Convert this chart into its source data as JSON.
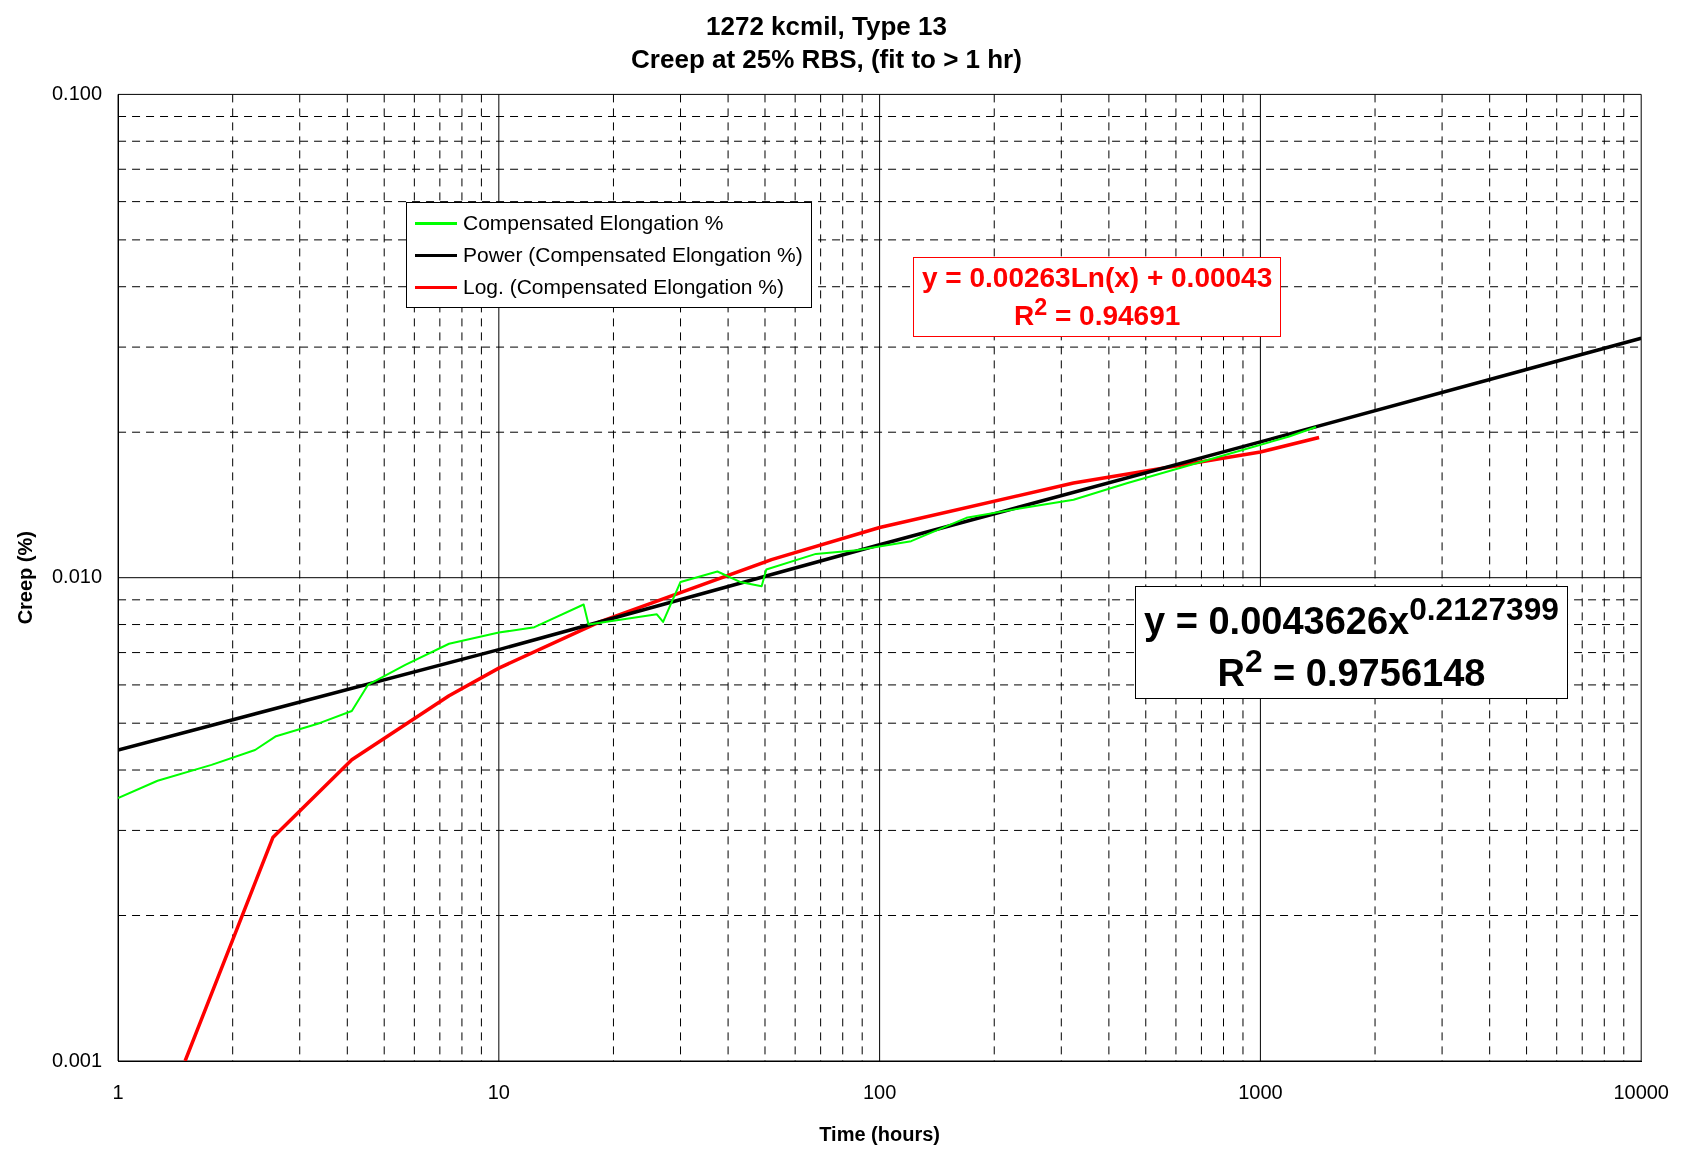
{
  "chart_data": {
    "type": "line",
    "title": "1272 kcmil, Type 13",
    "subtitle": "Creep at 25% RBS, (fit to > 1 hr)",
    "xlabel": "Time (hours)",
    "ylabel": "Creep (%)",
    "log": "xy",
    "grid": true,
    "legend": "top left",
    "marker": "none",
    "line_style": "solid",
    "xlim": [
      1,
      10000
    ],
    "ylim": [
      0.001,
      0.1
    ],
    "xticks": [
      1,
      {
        "value": 2,
        "label": null
      },
      {
        "value": 3,
        "label": null
      },
      {
        "value": 4,
        "label": null
      },
      {
        "value": 5,
        "label": null
      },
      {
        "value": 6,
        "label": null
      },
      {
        "value": 7,
        "label": null
      },
      {
        "value": 8,
        "label": null
      },
      {
        "value": 9,
        "label": null
      },
      10,
      {
        "value": 20,
        "label": null
      },
      {
        "value": 30,
        "label": null
      },
      {
        "value": 40,
        "label": null
      },
      {
        "value": 50,
        "label": null
      },
      {
        "value": 60,
        "label": null
      },
      {
        "value": 70,
        "label": null
      },
      {
        "value": 80,
        "label": null
      },
      {
        "value": 90,
        "label": null
      },
      100,
      {
        "value": 200,
        "label": null
      },
      {
        "value": 300,
        "label": null
      },
      {
        "value": 400,
        "label": null
      },
      {
        "value": 500,
        "label": null
      },
      {
        "value": 600,
        "label": null
      },
      {
        "value": 700,
        "label": null
      },
      {
        "value": 800,
        "label": null
      },
      {
        "value": 900,
        "label": null
      },
      1000,
      {
        "value": 2000,
        "label": null
      },
      {
        "value": 3000,
        "label": null
      },
      {
        "value": 4000,
        "label": null
      },
      {
        "value": 5000,
        "label": null
      },
      {
        "value": 6000,
        "label": null
      },
      {
        "value": 7000,
        "label": null
      },
      {
        "value": 8000,
        "label": null
      },
      {
        "value": 9000,
        "label": null
      },
      10000
    ],
    "yticks": [
      {
        "value": 0.001,
        "label": "0.001"
      },
      {
        "value": 0.002,
        "label": null
      },
      {
        "value": 0.003,
        "label": null
      },
      {
        "value": 0.004,
        "label": null
      },
      {
        "value": 0.005,
        "label": null
      },
      {
        "value": 0.006,
        "label": null
      },
      {
        "value": 0.007,
        "label": null
      },
      {
        "value": 0.008,
        "label": null
      },
      {
        "value": 0.009,
        "label": null
      },
      {
        "value": 0.01,
        "label": "0.010"
      },
      {
        "value": 0.02,
        "label": null
      },
      {
        "value": 0.03,
        "label": null
      },
      {
        "value": 0.04,
        "label": null
      },
      {
        "value": 0.05,
        "label": null
      },
      {
        "value": 0.06,
        "label": null
      },
      {
        "value": 0.07,
        "label": null
      },
      {
        "value": 0.08,
        "label": null
      },
      {
        "value": 0.09,
        "label": null
      },
      {
        "value": 0.1,
        "label": "0.100"
      }
    ],
    "series": [
      {
        "name": "Compensated Elongation %",
        "color": "#00ff00",
        "x": [
          1,
          1.27,
          1.76,
          2.29,
          2.6,
          3.38,
          4.11,
          4.53,
          5.68,
          7.4,
          10,
          12.4,
          16.7,
          17.2,
          26,
          27,
          30,
          37.5,
          43,
          49,
          50.4,
          68,
          87,
          121,
          169,
          233,
          323,
          448,
          621,
          860,
          1190,
          1400
        ],
        "values": [
          0.0035,
          0.0038,
          0.0041,
          0.0044,
          0.0047,
          0.005,
          0.0053,
          0.006,
          0.0066,
          0.0073,
          0.0077,
          0.0079,
          0.0088,
          0.008,
          0.0084,
          0.0081,
          0.0098,
          0.0103,
          0.0098,
          0.0096,
          0.0104,
          0.0112,
          0.0114,
          0.0119,
          0.0133,
          0.0139,
          0.0145,
          0.0157,
          0.0169,
          0.0182,
          0.0196,
          0.0205
        ]
      },
      {
        "name": "Power (Compensated Elongation %)",
        "color": "#000000",
        "x": [
          1,
          10,
          100,
          1000,
          10000
        ],
        "values": [
          0.0044,
          0.0071,
          0.0117,
          0.0191,
          0.0313
        ]
      },
      {
        "name": "Log. (Compensated Elongation %)",
        "color": "#ff0000",
        "x": [
          1.5,
          2.55,
          4.11,
          7.4,
          10,
          18.4,
          52,
          100,
          323,
          1000,
          1426
        ],
        "values": [
          0.001,
          0.0029,
          0.0042,
          0.0057,
          0.0065,
          0.0081,
          0.0109,
          0.0127,
          0.0157,
          0.0182,
          0.0195
        ]
      }
    ],
    "annotations": [
      "y = 0.00263Ln(x) + 0.00043",
      "R$^{2}$ = 0.94691",
      "y = 0.0043626x$^{0.2127399}$",
      "R$^{2}$ = 0.9756148"
    ]
  }
}
